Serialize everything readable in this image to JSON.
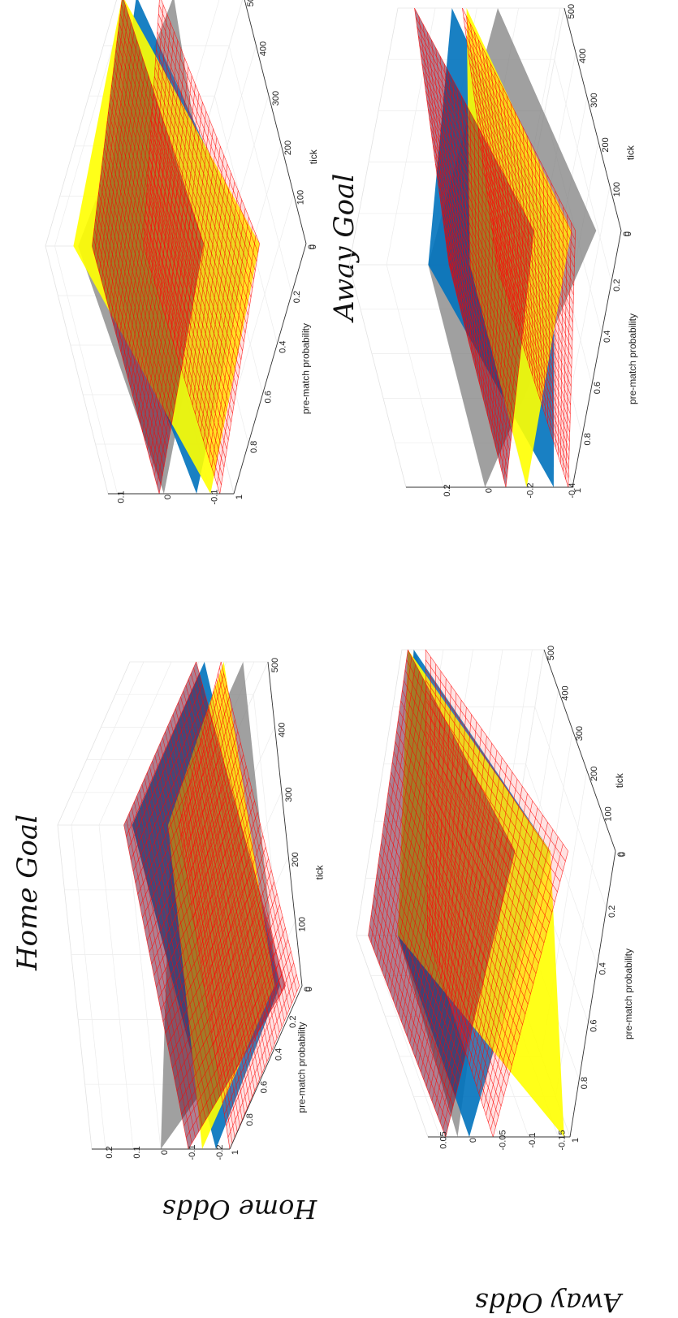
{
  "figure": {
    "col_titles": [
      "Home Goal",
      "Away Goal"
    ],
    "row_titles": [
      "Home Odds",
      "Away Odds"
    ]
  },
  "chart_data": [
    {
      "type": "surface-3d",
      "panel": "Home Odds / Home Goal",
      "xlabel": "pre-match probability",
      "ylabel": "tick",
      "zlabel": "",
      "x_ticks": [
        "0",
        "0.2",
        "0.4",
        "0.6",
        "0.8",
        "1"
      ],
      "y_ticks": [
        "0",
        "100",
        "200",
        "300",
        "400",
        "500"
      ],
      "z_ticks": [
        "-0.2",
        "-0.1",
        "0",
        "0.1",
        "0.2"
      ],
      "xlim": [
        0,
        1
      ],
      "ylim": [
        0,
        500
      ],
      "zlim": [
        -0.25,
        0.25
      ],
      "surfaces": [
        {
          "color": "#808080",
          "style": "solid",
          "corners": {
            "x0y0": -0.16,
            "x1y0": 0.0,
            "x0y500": -0.16,
            "x1y500": -0.16
          }
        },
        {
          "color": "#0072BD",
          "style": "solid",
          "corners": {
            "x0y0": -0.17,
            "x1y0": -0.2,
            "x0y500": -0.02,
            "x1y500": -0.02
          }
        },
        {
          "color": "#FFFF00",
          "style": "solid",
          "corners": {
            "x0y0": -0.15,
            "x1y0": -0.15,
            "x0y500": -0.09,
            "x1y500": -0.15
          }
        },
        {
          "color": "#FF0000",
          "style": "mesh-upper",
          "corners": {
            "x0y0": -0.19,
            "x1y0": -0.1,
            "x0y500": 0.01,
            "x1y500": 0.01
          }
        },
        {
          "color": "#FF0000",
          "style": "mesh-lower",
          "corners": {
            "x0y0": -0.24,
            "x1y0": -0.25,
            "x0y500": -0.08,
            "x1y500": -0.19
          }
        }
      ]
    },
    {
      "type": "surface-3d",
      "panel": "Home Odds / Away Goal",
      "xlabel": "pre-match probability",
      "ylabel": "tick",
      "zlabel": "",
      "x_ticks": [
        "0",
        "0.2",
        "0.4",
        "0.6",
        "0.8",
        "1"
      ],
      "y_ticks": [
        "0",
        "100",
        "200",
        "300",
        "400",
        "500"
      ],
      "z_ticks": [
        "-0.1",
        "0",
        "0.1"
      ],
      "xlim": [
        0,
        1
      ],
      "ylim": [
        0,
        500
      ],
      "zlim": [
        -0.15,
        0.12
      ],
      "surfaces": [
        {
          "color": "#808080",
          "style": "solid",
          "corners": {
            "x0y0": 0.05,
            "x1y0": 0.0,
            "x0y500": 0.0,
            "x1y500": 0.05
          }
        },
        {
          "color": "#0072BD",
          "style": "solid",
          "corners": {
            "x0y0": -0.03,
            "x1y0": -0.07,
            "x0y500": 0.08,
            "x1y500": 0.0
          }
        },
        {
          "color": "#FFFF00",
          "style": "solid",
          "corners": {
            "x0y0": -0.05,
            "x1y0": -0.1,
            "x0y500": 0.11,
            "x1y500": 0.06
          }
        },
        {
          "color": "#FF0000",
          "style": "mesh-upper",
          "corners": {
            "x0y0": 0.07,
            "x1y0": 0.01,
            "x0y500": 0.11,
            "x1y500": 0.02
          }
        },
        {
          "color": "#FF0000",
          "style": "mesh-lower",
          "corners": {
            "x0y0": -0.05,
            "x1y0": -0.12,
            "x0y500": 0.03,
            "x1y500": -0.09
          }
        }
      ]
    },
    {
      "type": "surface-3d",
      "panel": "Away Odds / Home Goal",
      "xlabel": "pre-match probability",
      "ylabel": "tick",
      "zlabel": "",
      "x_ticks": [
        "0",
        "0.2",
        "0.4",
        "0.6",
        "0.8",
        "1"
      ],
      "y_ticks": [
        "0",
        "100",
        "200",
        "300",
        "400",
        "500"
      ],
      "z_ticks": [
        "-0.15",
        "-0.1",
        "-0.05",
        "0",
        "0.05"
      ],
      "xlim": [
        0,
        1
      ],
      "ylim": [
        0,
        500
      ],
      "zlim": [
        -0.17,
        0.07
      ],
      "surfaces": [
        {
          "color": "#808080",
          "style": "solid",
          "corners": {
            "x0y0": 0.03,
            "x1y0": 0.02,
            "x0y500": 0.05,
            "x1y500": 0.0
          }
        },
        {
          "color": "#0072BD",
          "style": "solid",
          "corners": {
            "x0y0": -0.06,
            "x1y0": 0.0,
            "x0y500": 0.05,
            "x1y500": 0.0
          }
        },
        {
          "color": "#FFFF00",
          "style": "solid",
          "corners": {
            "x0y0": -0.06,
            "x1y0": -0.16,
            "x0y500": 0.06,
            "x1y500": 0.0
          }
        },
        {
          "color": "#FF0000",
          "style": "mesh-upper",
          "corners": {
            "x0y0": 0.0,
            "x1y0": 0.04,
            "x0y500": 0.06,
            "x1y500": 0.05
          }
        },
        {
          "color": "#FF0000",
          "style": "mesh-lower",
          "corners": {
            "x0y0": -0.09,
            "x1y0": -0.04,
            "x0y500": 0.03,
            "x1y500": -0.05
          }
        }
      ]
    },
    {
      "type": "surface-3d",
      "panel": "Away Odds / Away Goal",
      "xlabel": "pre-match probability",
      "ylabel": "tick",
      "zlabel": "",
      "x_ticks": [
        "0",
        "0.2",
        "0.4",
        "0.6",
        "0.8",
        "1"
      ],
      "y_ticks": [
        "0",
        "100",
        "200",
        "300",
        "400",
        "500"
      ],
      "z_ticks": [
        "-0.4",
        "-0.2",
        "0",
        "0.2"
      ],
      "xlim": [
        0,
        1
      ],
      "ylim": [
        0,
        500
      ],
      "zlim": [
        -0.42,
        0.38
      ],
      "surfaces": [
        {
          "color": "#808080",
          "style": "solid",
          "corners": {
            "x0y0": -0.3,
            "x1y0": 0.0,
            "x0y500": -0.1,
            "x1y500": 0.0
          }
        },
        {
          "color": "#0072BD",
          "style": "solid",
          "corners": {
            "x0y0": -0.1,
            "x1y0": -0.33,
            "x0y500": 0.12,
            "x1y500": 0.0
          }
        },
        {
          "color": "#FFFF00",
          "style": "solid",
          "corners": {
            "x0y0": -0.18,
            "x1y0": -0.2,
            "x0y500": 0.05,
            "x1y500": -0.2
          }
        },
        {
          "color": "#FF0000",
          "style": "mesh-upper",
          "corners": {
            "x0y0": 0.0,
            "x1y0": -0.1,
            "x0y500": 0.3,
            "x1y500": -0.1
          }
        },
        {
          "color": "#FF0000",
          "style": "mesh-lower",
          "corners": {
            "x0y0": -0.2,
            "x1y0": -0.4,
            "x0y500": 0.07,
            "x1y500": -0.33
          }
        }
      ]
    }
  ]
}
